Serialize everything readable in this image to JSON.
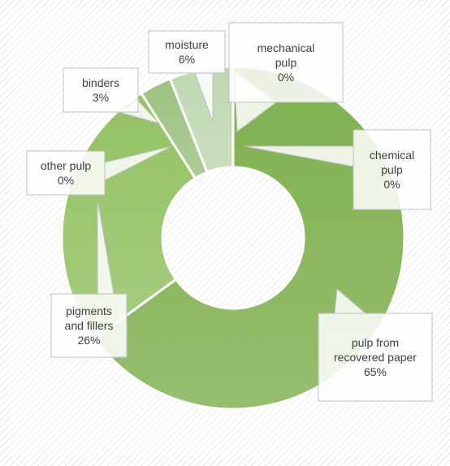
{
  "chart_data": {
    "type": "pie",
    "variant": "doughnut",
    "title": "",
    "slices": [
      {
        "label": "pulp from recovered paper",
        "value": 65,
        "display": "65%",
        "color": "#7fb04f"
      },
      {
        "label": "pigments and fillers",
        "value": 26,
        "display": "26%",
        "color": "#93c263"
      },
      {
        "label": "other pulp",
        "value": 0,
        "display": "0%",
        "color": "#74ab47"
      },
      {
        "label": "binders",
        "value": 3,
        "display": "3%",
        "color": "#9cc280"
      },
      {
        "label": "moisture",
        "value": 6,
        "display": "6%",
        "color": "#bfd8b1"
      },
      {
        "label": "mechanical pulp",
        "value": 0,
        "display": "0%",
        "color": "#d6e6cc"
      },
      {
        "label": "chemical pulp",
        "value": 0,
        "display": "0%",
        "color": "#5a8f34"
      }
    ],
    "legend": "none",
    "data_labels": "callouts with category name and percentage"
  },
  "colors": {
    "background_hatch": "#e4e4e4",
    "plot_fill": "#ffffff",
    "callout_fill": "#ffffff",
    "callout_border": "#bfbfbf",
    "label_text": "#404040"
  }
}
